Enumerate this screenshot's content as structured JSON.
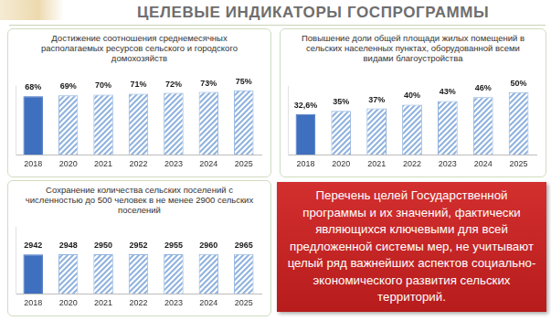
{
  "header": {
    "title": "ЦЕЛЕВЫЕ ИНДИКАТОРЫ ГОСПРОГРАММЫ"
  },
  "chart_data": [
    {
      "type": "bar",
      "title": "Достижение соотношения среднемесячных располагаемых ресурсов сельского и городского домохозяйств",
      "categories": [
        "2018",
        "2020",
        "2021",
        "2022",
        "2023",
        "2024",
        "2025"
      ],
      "values": [
        68,
        69,
        70,
        71,
        72,
        73,
        75
      ],
      "value_labels": [
        "68%",
        "69%",
        "70%",
        "71%",
        "72%",
        "73%",
        "75%"
      ],
      "colors": [
        "#3f6fbf",
        "#8fb2de",
        "#8fb2de",
        "#8fb2de",
        "#8fb2de",
        "#8fb2de",
        "#8fb2de"
      ],
      "ylim": [
        0,
        80
      ],
      "grid": false,
      "tick_labels": "x",
      "data_labels": true
    },
    {
      "type": "bar",
      "title": "Повышение доли общей площади жилых помещений в сельских населенных пунктах, оборудованной всеми видами благоустройства",
      "categories": [
        "2018",
        "2020",
        "2021",
        "2022",
        "2023",
        "2024",
        "2025"
      ],
      "values": [
        32.6,
        35,
        37,
        40,
        43,
        46,
        50
      ],
      "value_labels": [
        "32,6%",
        "35%",
        "37%",
        "40%",
        "43%",
        "46%",
        "50%"
      ],
      "colors": [
        "#3f6fbf",
        "#8fb2de",
        "#8fb2de",
        "#8fb2de",
        "#8fb2de",
        "#8fb2de",
        "#8fb2de"
      ],
      "ylim": [
        0,
        55
      ],
      "grid": false,
      "tick_labels": "x",
      "data_labels": true
    },
    {
      "type": "bar",
      "title": "Сохранение количества сельских поселений с численностью до 500 человек в не менее 2900 сельских поселений",
      "categories": [
        "2018",
        "2020",
        "2021",
        "2022",
        "2023",
        "2024",
        "2025"
      ],
      "values": [
        2942,
        2948,
        2950,
        2952,
        2955,
        2960,
        2965
      ],
      "colors": [
        "#3f6fbf",
        "#8fb2de",
        "#8fb2de",
        "#8fb2de",
        "#8fb2de",
        "#8fb2de",
        "#8fb2de"
      ],
      "ylim": [
        0,
        5000
      ],
      "grid": false,
      "tick_labels": "x",
      "data_labels": true
    }
  ],
  "note": {
    "text": "Перечень целей Государственной программы и их значений, фактически являющихся ключевыми для всей предложенной системы мер, не учитывают целый ряд важнейших аспектов социально-экономического развития сельских территорий."
  }
}
